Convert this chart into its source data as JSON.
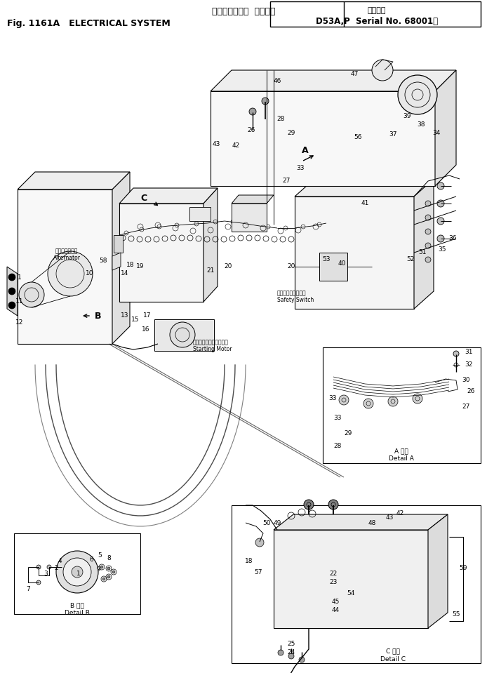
{
  "title_jp": "エレクトリカル  システム",
  "title_fig": "Fig. 1161A   ELECTRICAL SYSTEM",
  "title_serial_label": "適用号機",
  "title_serial": "D53A,P  Serial No. 68001～",
  "bg_color": "#ffffff",
  "lc": "#000000",
  "fig_width": 6.94,
  "fig_height": 9.59,
  "dpi": 100
}
